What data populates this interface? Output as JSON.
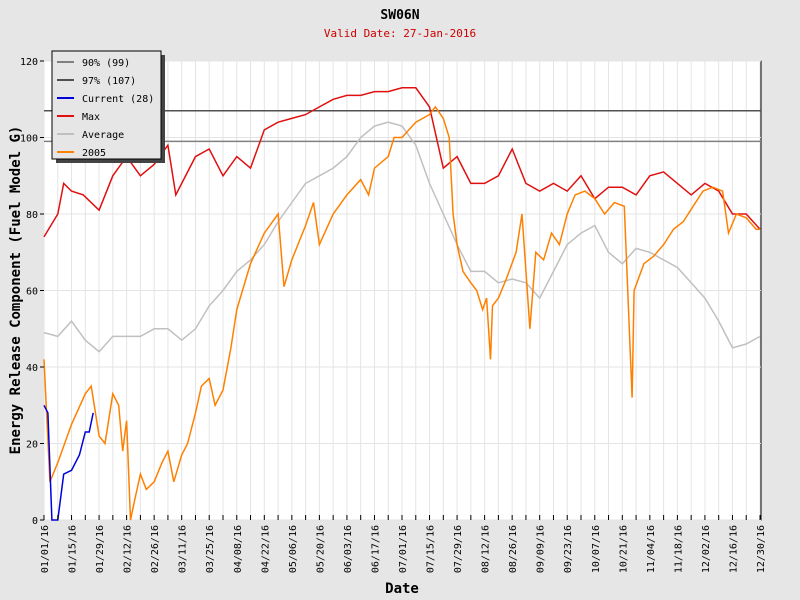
{
  "chart_data": {
    "type": "line",
    "title": "SW06N",
    "subtitle": "Valid Date: 27-Jan-2016",
    "xlabel": "Date",
    "ylabel": "Energy Release Component (Fuel Model G)",
    "ylim": [
      0,
      120
    ],
    "yticks": [
      0,
      20,
      40,
      60,
      80,
      100,
      120
    ],
    "xlim_days": [
      0,
      365
    ],
    "xtick_labels": [
      "01/01/16",
      "01/15/16",
      "01/29/16",
      "02/12/16",
      "02/26/16",
      "03/11/16",
      "03/25/16",
      "04/08/16",
      "04/22/16",
      "05/06/16",
      "05/20/16",
      "06/03/16",
      "06/17/16",
      "07/01/16",
      "07/15/16",
      "07/29/16",
      "08/12/16",
      "08/26/16",
      "09/09/16",
      "09/23/16",
      "10/07/16",
      "10/21/16",
      "11/04/16",
      "11/18/16",
      "12/02/16",
      "12/16/16",
      "12/30/16"
    ],
    "grid": true,
    "legend_position": "top-left",
    "thresholds": [
      {
        "name": "90% (99)",
        "value": 99,
        "color": "#808080"
      },
      {
        "name": "97% (107)",
        "value": 107,
        "color": "#505050"
      }
    ],
    "series": [
      {
        "name": "Current (28)",
        "color": "#0000dd",
        "x": [
          0,
          2,
          4,
          7,
          10,
          14,
          18,
          21,
          23,
          25
        ],
        "y": [
          30,
          28,
          0,
          0,
          12,
          13,
          17,
          23,
          23,
          28
        ]
      },
      {
        "name": "Max",
        "color": "#e01010",
        "x": [
          0,
          7,
          10,
          14,
          20,
          28,
          35,
          42,
          49,
          56,
          63,
          67,
          70,
          77,
          84,
          91,
          98,
          105,
          112,
          119,
          126,
          133,
          140,
          147,
          154,
          161,
          168,
          175,
          182,
          189,
          196,
          203,
          210,
          217,
          224,
          231,
          238,
          245,
          252,
          259,
          266,
          273,
          280,
          287,
          294,
          301,
          308,
          315,
          322,
          329,
          336,
          343,
          350,
          357,
          364
        ],
        "y": [
          74,
          80,
          88,
          86,
          85,
          81,
          90,
          95,
          90,
          93,
          98,
          85,
          88,
          95,
          97,
          90,
          95,
          92,
          102,
          104,
          105,
          106,
          108,
          110,
          111,
          111,
          112,
          112,
          113,
          113,
          108,
          92,
          95,
          88,
          88,
          90,
          97,
          88,
          86,
          88,
          86,
          90,
          84,
          87,
          87,
          85,
          90,
          91,
          88,
          85,
          88,
          86,
          80,
          80,
          76
        ]
      },
      {
        "name": "Average",
        "color": "#c0c0c0",
        "x": [
          0,
          7,
          14,
          21,
          28,
          35,
          42,
          49,
          56,
          63,
          70,
          77,
          84,
          91,
          98,
          105,
          112,
          119,
          126,
          133,
          140,
          147,
          154,
          161,
          168,
          175,
          182,
          189,
          196,
          203,
          210,
          217,
          224,
          231,
          238,
          245,
          252,
          259,
          266,
          273,
          280,
          287,
          294,
          301,
          308,
          315,
          322,
          329,
          336,
          343,
          350,
          357,
          364
        ],
        "y": [
          49,
          48,
          52,
          47,
          44,
          48,
          48,
          48,
          50,
          50,
          47,
          50,
          56,
          60,
          65,
          68,
          72,
          78,
          83,
          88,
          90,
          92,
          95,
          100,
          103,
          104,
          103,
          98,
          88,
          80,
          72,
          65,
          65,
          62,
          63,
          62,
          58,
          65,
          72,
          75,
          77,
          70,
          67,
          71,
          70,
          68,
          66,
          62,
          58,
          52,
          45,
          46,
          48
        ]
      },
      {
        "name": "2005",
        "color": "#ff8000",
        "x": [
          0,
          3,
          7,
          14,
          21,
          24,
          28,
          31,
          35,
          38,
          40,
          42,
          44,
          46,
          49,
          52,
          56,
          60,
          63,
          66,
          70,
          73,
          77,
          80,
          84,
          87,
          91,
          95,
          98,
          105,
          112,
          119,
          122,
          126,
          133,
          137,
          140,
          147,
          154,
          161,
          165,
          168,
          175,
          178,
          182,
          189,
          196,
          199,
          203,
          206,
          208,
          210,
          213,
          217,
          220,
          223,
          225,
          227,
          228,
          231,
          235,
          240,
          243,
          247,
          250,
          254,
          258,
          262,
          266,
          270,
          275,
          280,
          285,
          290,
          295,
          299,
          300,
          305,
          310,
          315,
          320,
          325,
          330,
          335,
          340,
          345,
          348,
          352,
          357,
          362,
          364
        ],
        "y": [
          42,
          10,
          15,
          25,
          33,
          35,
          22,
          20,
          33,
          30,
          18,
          26,
          0,
          5,
          12,
          8,
          10,
          15,
          18,
          10,
          17,
          20,
          28,
          35,
          37,
          30,
          34,
          45,
          55,
          67,
          75,
          80,
          61,
          68,
          77,
          83,
          72,
          80,
          85,
          89,
          85,
          92,
          95,
          100,
          100,
          104,
          106,
          108,
          105,
          100,
          80,
          72,
          65,
          62,
          60,
          55,
          58,
          42,
          56,
          58,
          63,
          70,
          80,
          50,
          70,
          68,
          75,
          72,
          80,
          85,
          86,
          84,
          80,
          83,
          82,
          32,
          60,
          67,
          69,
          72,
          76,
          78,
          82,
          86,
          87,
          86,
          75,
          80,
          79,
          76,
          76
        ]
      }
    ]
  }
}
